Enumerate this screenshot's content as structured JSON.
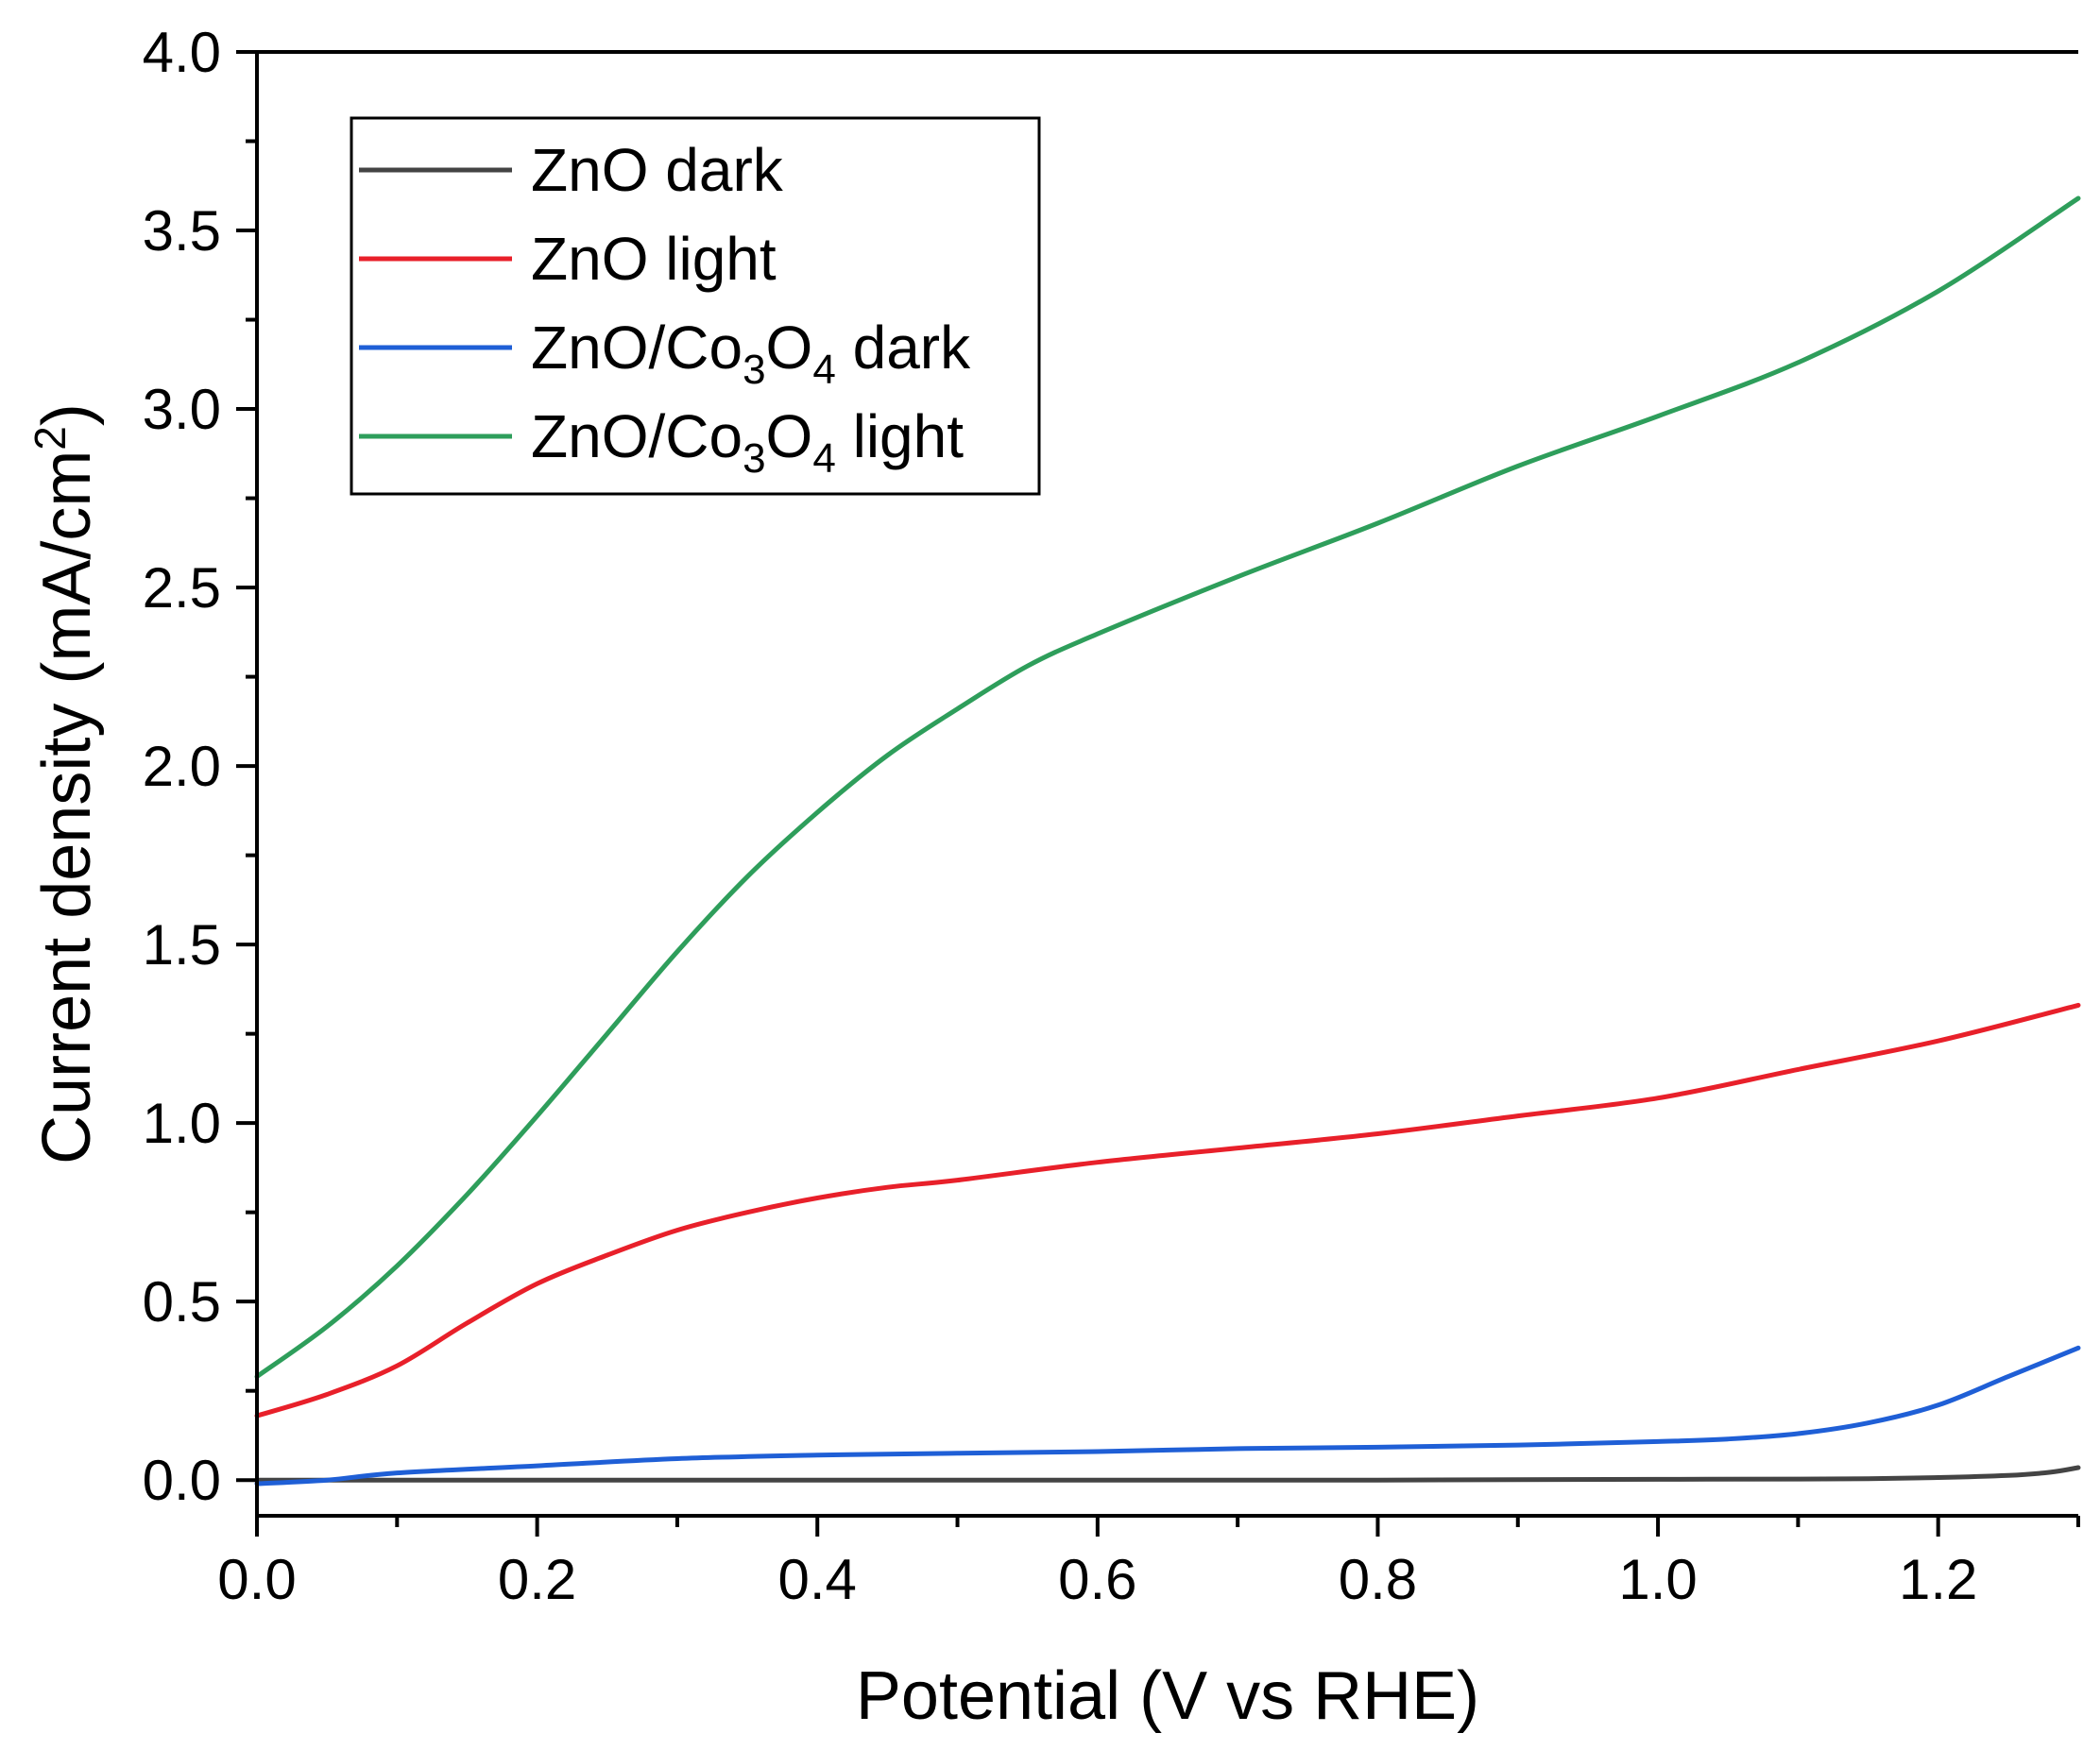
{
  "chart_data": {
    "type": "line",
    "title": "",
    "xlabel": "Potential (V vs RHE)",
    "ylabel": "Current density (mA/cm2)",
    "ylabel_parts": {
      "main": "Current density (mA/cm",
      "sup": "2",
      "end": ")"
    },
    "xlim": [
      0.0,
      1.3
    ],
    "ylim": [
      -0.1,
      4.0
    ],
    "x_ticks": [
      "0.0",
      "0.2",
      "0.4",
      "0.6",
      "0.8",
      "1.0",
      "1.2"
    ],
    "y_ticks": [
      "0.0",
      "0.5",
      "1.0",
      "1.5",
      "2.0",
      "2.5",
      "3.0",
      "3.5",
      "4.0"
    ],
    "grid": false,
    "legend_position": "top-left",
    "series": [
      {
        "name": "ZnO dark",
        "label_parts": [
          {
            "t": "ZnO dark"
          }
        ],
        "color": "#444444",
        "x": [
          0.0,
          0.1,
          0.2,
          0.3,
          0.4,
          0.5,
          0.6,
          0.7,
          0.8,
          0.9,
          1.0,
          1.1,
          1.15,
          1.2,
          1.25,
          1.28,
          1.3
        ],
        "y": [
          0.0,
          0.0,
          0.0,
          0.0,
          0.0,
          0.0,
          0.0,
          0.0,
          0.0,
          0.001,
          0.002,
          0.003,
          0.004,
          0.007,
          0.013,
          0.022,
          0.035
        ]
      },
      {
        "name": "ZnO light",
        "label_parts": [
          {
            "t": "ZnO light"
          }
        ],
        "color": "#e8202a",
        "x": [
          0.0,
          0.05,
          0.1,
          0.15,
          0.2,
          0.25,
          0.3,
          0.35,
          0.4,
          0.45,
          0.5,
          0.6,
          0.7,
          0.8,
          0.9,
          1.0,
          1.1,
          1.2,
          1.3
        ],
        "y": [
          0.18,
          0.24,
          0.32,
          0.44,
          0.55,
          0.63,
          0.7,
          0.75,
          0.79,
          0.82,
          0.84,
          0.89,
          0.93,
          0.97,
          1.02,
          1.07,
          1.15,
          1.23,
          1.33
        ]
      },
      {
        "name": "ZnO/Co3O4 dark",
        "label_parts": [
          {
            "t": "ZnO/Co"
          },
          {
            "t": "3",
            "sub": true
          },
          {
            "t": "O"
          },
          {
            "t": "4",
            "sub": true
          },
          {
            "t": " dark"
          }
        ],
        "color": "#1f5fd6",
        "x": [
          0.0,
          0.05,
          0.1,
          0.2,
          0.3,
          0.4,
          0.5,
          0.6,
          0.7,
          0.8,
          0.9,
          1.0,
          1.05,
          1.1,
          1.15,
          1.2,
          1.25,
          1.3
        ],
        "y": [
          -0.01,
          0.0,
          0.02,
          0.04,
          0.06,
          0.07,
          0.075,
          0.08,
          0.088,
          0.092,
          0.098,
          0.108,
          0.115,
          0.13,
          0.16,
          0.21,
          0.29,
          0.37
        ]
      },
      {
        "name": "ZnO/Co3O4 light",
        "label_parts": [
          {
            "t": "ZnO/Co"
          },
          {
            "t": "3",
            "sub": true
          },
          {
            "t": "O"
          },
          {
            "t": "4",
            "sub": true
          },
          {
            "t": " light"
          }
        ],
        "color": "#2e9e5b",
        "x": [
          0.0,
          0.05,
          0.1,
          0.15,
          0.2,
          0.25,
          0.3,
          0.35,
          0.4,
          0.45,
          0.5,
          0.55,
          0.6,
          0.7,
          0.8,
          0.9,
          1.0,
          1.1,
          1.2,
          1.3
        ],
        "y": [
          0.29,
          0.43,
          0.6,
          0.8,
          1.02,
          1.25,
          1.48,
          1.69,
          1.87,
          2.03,
          2.16,
          2.28,
          2.37,
          2.53,
          2.68,
          2.84,
          2.98,
          3.13,
          3.33,
          3.59
        ]
      }
    ]
  }
}
